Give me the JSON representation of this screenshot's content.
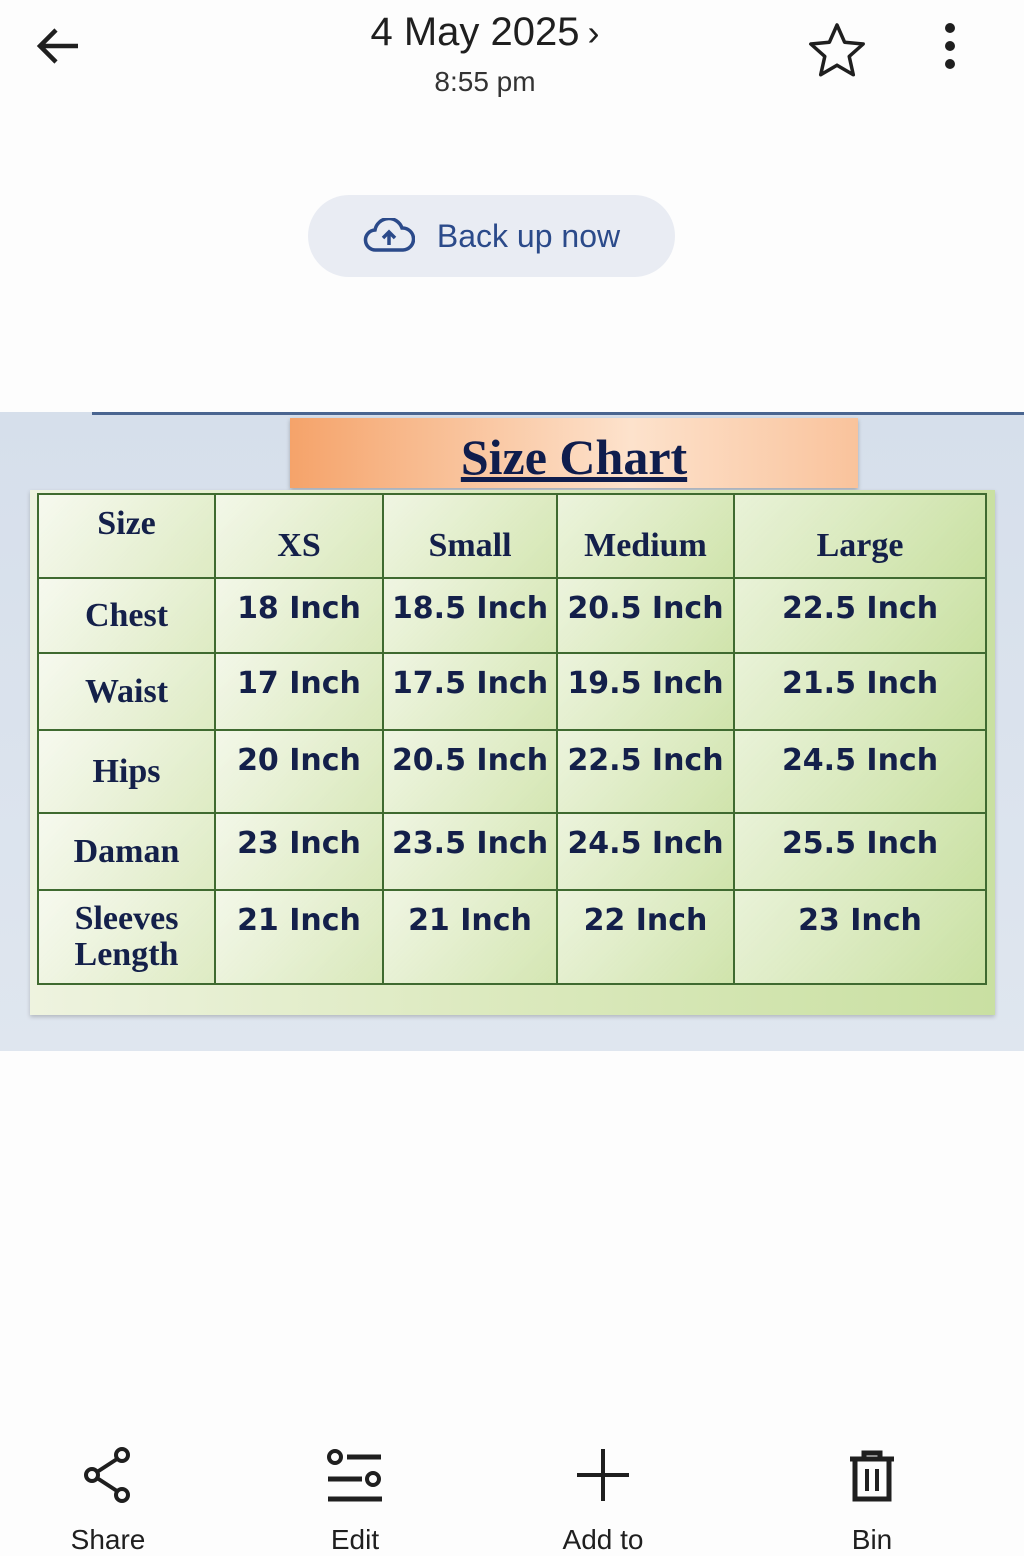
{
  "header": {
    "date": "4 May 2025",
    "time": "8:55 pm"
  },
  "backup": {
    "label": "Back up now"
  },
  "photo": {
    "title": "Size Chart",
    "table": {
      "header": [
        "Size",
        "XS",
        "Small",
        "Medium",
        "Large"
      ],
      "rows": [
        [
          "Chest",
          "18 Inch",
          "18.5 Inch",
          "20.5 Inch",
          "22.5 Inch"
        ],
        [
          "Waist",
          "17 Inch",
          "17.5 Inch",
          "19.5 Inch",
          "21.5 Inch"
        ],
        [
          "Hips",
          "20 Inch",
          "20.5 Inch",
          "22.5 Inch",
          "24.5 Inch"
        ],
        [
          "Daman",
          "23 Inch",
          "23.5 Inch",
          "24.5 Inch",
          "25.5 Inch"
        ],
        [
          "Sleeves Length",
          "21 Inch",
          "21 Inch",
          "22 Inch",
          "23 Inch"
        ]
      ]
    }
  },
  "actions": [
    {
      "label": "Share",
      "icon": "share-icon"
    },
    {
      "label": "Edit",
      "icon": "edit-sliders-icon"
    },
    {
      "label": "Add to",
      "icon": "plus-icon"
    },
    {
      "label": "Bin",
      "icon": "trash-icon"
    }
  ]
}
